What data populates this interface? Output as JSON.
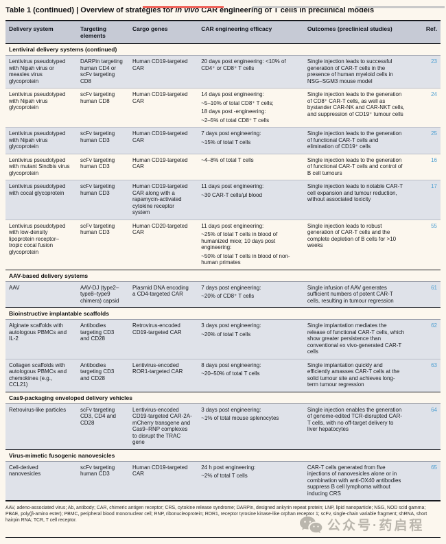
{
  "page": {
    "title_prefix": "Table 1 (continued) | Overview of strategies for ",
    "title_italic": "in vivo",
    "title_suffix": " CAR engineering of T cells in preclinical models",
    "footnote": "AAV, adeno-associated virus; Ab, antibody; CAR, chimeric antigen receptor; CRS, cytokine release syndrome; DARPin, designed ankyrin repeat protein; LNP, lipid nanoparticle; NSG, NOD scid gamma; PBAE, poly(β-amino ester); PBMC, peripheral blood mononuclear cell; RNP, ribonucleoprotein; ROR1, receptor tyrosine kinase-like orphan receptor 1; scFv, single-chain variable fragment; shRNA, short hairpin RNA; TCR, T cell receptor.",
    "watermark_text": "公众号·药启程",
    "watermark_icon": "wechat-icon"
  },
  "colors": {
    "page_bg": "#fcf7ee",
    "header_bg": "#c6cad5",
    "tinted_row_bg": "#dfe2e9",
    "ref_link_blue": "#4e9fd1",
    "top_bar_red": "#f0635a",
    "top_bar_gray": "#c9c9c9"
  },
  "table": {
    "columns": [
      "Delivery system",
      "Targeting elements",
      "Cargo genes",
      "CAR engineering efficacy",
      "Outcomes (preclinical studies)",
      "Ref."
    ],
    "sections": [
      {
        "title": "Lentiviral delivery systems (continued)",
        "rows": [
          {
            "delivery": "Lentivirus pseudotyped with Nipah virus or measles virus glycoprotein",
            "targeting": "DARPin targeting human CD4 or scFv targeting CD8",
            "cargo": "Human CD19-targeted CAR",
            "efficacy": [
              "20 days post engineering: <10% of CD4⁺ or CD8⁺ T cells"
            ],
            "outcomes": "Single injection leads to successful generation of CAR-T cells in the presence of human myeloid cells in NSG–SGM3 mouse model",
            "ref": "23",
            "tinted": true
          },
          {
            "delivery": "Lentivirus pseudotyped with Nipah virus glycoprotein",
            "targeting": "scFv targeting human CD8",
            "cargo": "Human CD19-targeted CAR",
            "efficacy": [
              "14 days post engineering:",
              "~5–10% of total CD8⁺ T cells;",
              "18 days post -engineering:",
              "~2–5% of total CD8⁺ T cells"
            ],
            "outcomes": "Single injection leads to the generation of CD8⁺ CAR-T cells, as well as bystander CAR-NK and CAR-NKT cells, and suppression of CD19⁺ tumour cells",
            "ref": "24",
            "tinted": false
          },
          {
            "delivery": "Lentivirus pseudotyped with Nipah virus glycoprotein",
            "targeting": "scFv targeting human CD3",
            "cargo": "Human CD19-targeted CAR",
            "efficacy": [
              "7 days post engineering:",
              "~15% of total T cells"
            ],
            "outcomes": "Single injection leads to the generation of functional CAR-T cells and elimination of CD19⁺ cells",
            "ref": "25",
            "tinted": true
          },
          {
            "delivery": "Lentivirus pseudotyped with mutant Sindbis virus glycoprotein",
            "targeting": "scFv targeting human CD3",
            "cargo": "Human CD19-targeted CAR",
            "efficacy": [
              "~4–8% of total T cells"
            ],
            "outcomes": "Single injection leads to the generation of functional CAR-T cells and control of B cell tumours",
            "ref": "16",
            "tinted": false
          },
          {
            "delivery": "Lentivirus pseudotyped with cocal glycoprotein",
            "targeting": "scFv targeting human CD3",
            "cargo": "Human CD19-targeted CAR along with a rapamycin-activated cytokine receptor system",
            "efficacy": [
              "11 days post engineering:",
              "~30 CAR-T cells/μl blood"
            ],
            "outcomes": "Single injection leads to notable CAR-T cell expansion and tumour reduction, without associated toxicity",
            "ref": "17",
            "tinted": true
          },
          {
            "delivery": "Lentivirus pseudotyped with low-density lipoprotein receptor–tropic cocal fusion glycoprotein",
            "targeting": "scFv targeting human CD3",
            "cargo": "Human CD20-targeted CAR",
            "efficacy": [
              "11 days post engineering:",
              "~25% of total T cells in blood of humanized mice; 10 days post engineering:",
              "~50% of total T cells in blood of non-human primates"
            ],
            "outcomes": "Single injection leads to robust generation of CAR-T cells and the complete depletion of B cells for >10 weeks",
            "ref": "55",
            "tinted": false
          }
        ]
      },
      {
        "title": "AAV-based delivery systems",
        "rows": [
          {
            "delivery": "AAV",
            "targeting": "AAV-DJ (type2–type8–type9 chimera) capsid",
            "cargo": "Plasmid DNA encoding a CD4-targeted CAR",
            "efficacy": [
              "7 days post engineering:",
              "~20% of CD8⁺ T cells"
            ],
            "outcomes": "Single infusion of AAV generates sufficient numbers of potent CAR-T cells, resulting in tumour regression",
            "ref": "61",
            "tinted": true
          }
        ]
      },
      {
        "title": "Bioinstructive implantable scaffolds",
        "rows": [
          {
            "delivery": "Alginate scaffolds with autologous PBMCs and IL-2",
            "targeting": "Antibodies targeting CD3 and CD28",
            "cargo": "Retrovirus-encoded CD19-targeted CAR",
            "efficacy": [
              "3 days post engineering:",
              "~20% of total T cells"
            ],
            "outcomes": "Single implantation mediates the release of functional CAR-T cells, which show greater persistence than conventional ex vivo-generated CAR-T cells",
            "ref": "62",
            "tinted": true
          },
          {
            "delivery": "Collagen scaffolds with autologous PBMCs and chemokines (e.g., CCL21)",
            "targeting": "Antibodies targeting CD3 and CD28",
            "cargo": "Lentivirus-encoded ROR1-targeted CAR",
            "efficacy": [
              "8 days post engineering:",
              "~20–50% of total T cells"
            ],
            "outcomes": "Single implantation quickly and efficiently amasses CAR-T cells at the solid tumour site and achieves long-term tumour regression",
            "ref": "63",
            "tinted": true
          }
        ]
      },
      {
        "title": "Cas9-packaging enveloped delivery vehicles",
        "rows": [
          {
            "delivery": "Retrovirus-like particles",
            "targeting": "scFv targeting CD3, CD4 and CD28",
            "cargo": "Lentivirus-encoded CD19-targeted CAR-2A-mCherry transgene and Cas9–RNP complexes to disrupt the TRAC gene",
            "efficacy": [
              "3 days post engineering:",
              "~1% of total mouse splenocytes"
            ],
            "outcomes": "Single injection enables the generation of genome-edited TCR-disrupted CAR-T cells, with no off-target delivery to liver hepatocytes",
            "ref": "64",
            "tinted": true
          }
        ]
      },
      {
        "title": "Virus-mimetic fusogenic nanovesicles",
        "rows": [
          {
            "delivery": "Cell-derived nanovesicles",
            "targeting": "scFv targeting human CD3",
            "cargo": "Human CD19-targeted CAR",
            "efficacy": [
              "24 h post engineering:",
              "~2% of total T cells"
            ],
            "outcomes": "CAR-T cells generated from five injections of nanovesicles alone or in combination with anti-OX40 antibodies suppress B cell lymphoma without inducing CRS",
            "ref": "65",
            "tinted": true
          }
        ]
      }
    ]
  }
}
